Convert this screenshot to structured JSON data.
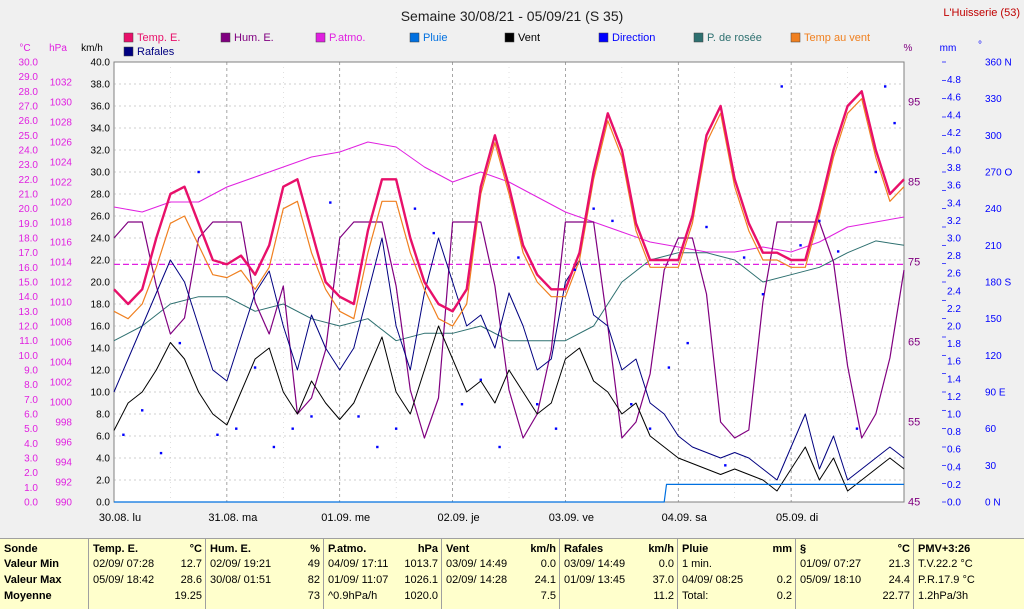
{
  "header": {
    "title": "Semaine 30/08/21 - 05/09/21 (S 35)",
    "station": "L'Huisserie (53)"
  },
  "legend": [
    {
      "name": "Temp. E.",
      "color": "#e8106a"
    },
    {
      "name": "Hum. E.",
      "color": "#800080"
    },
    {
      "name": "P.atmo.",
      "color": "#e020e0"
    },
    {
      "name": "Pluie",
      "color": "#0070e0"
    },
    {
      "name": "Vent",
      "color": "#000000"
    },
    {
      "name": "Direction",
      "color": "#0000ff"
    },
    {
      "name": "P. de rosée",
      "color": "#2e7070"
    },
    {
      "name": "Temp au vent",
      "color": "#f08020"
    },
    {
      "name": "Rafales",
      "color": "#000080"
    }
  ],
  "axes": {
    "temp_unit": "°C",
    "press_unit": "hPa",
    "wind_unit": "km/h",
    "hum_unit": "%",
    "rain_unit": "mm",
    "dir_unit": "°",
    "temp_ticks": [
      "30.0",
      "29.0",
      "28.0",
      "27.0",
      "26.0",
      "25.0",
      "24.0",
      "23.0",
      "22.0",
      "21.0",
      "20.0",
      "19.0",
      "18.0",
      "17.0",
      "16.0",
      "15.0",
      "14.0",
      "13.0",
      "12.0",
      "11.0",
      "10.0",
      "9.0",
      "8.0",
      "7.0",
      "6.0",
      "5.0",
      "4.0",
      "3.0",
      "2.0",
      "1.0",
      "0.0"
    ],
    "press_ticks": [
      "1032",
      "1030",
      "1028",
      "1026",
      "1024",
      "1022",
      "1020",
      "1018",
      "1016",
      "1014",
      "1012",
      "1010",
      "1008",
      "1006",
      "1004",
      "1002",
      "1000",
      "998",
      "996",
      "994",
      "992",
      "990"
    ],
    "wind_ticks": [
      "40.0",
      "38.0",
      "36.0",
      "34.0",
      "32.0",
      "30.0",
      "28.0",
      "26.0",
      "24.0",
      "22.0",
      "20.0",
      "18.0",
      "16.0",
      "14.0",
      "12.0",
      "10.0",
      "8.0",
      "6.0",
      "4.0",
      "2.0",
      "0.0"
    ],
    "hum_ticks": [
      "95",
      "85",
      "75",
      "65",
      "55",
      "45"
    ],
    "rain_ticks": [
      "4.8",
      "4.6",
      "4.4",
      "4.2",
      "4.0",
      "3.8",
      "3.6",
      "3.4",
      "3.2",
      "3.0",
      "2.8",
      "2.6",
      "2.4",
      "2.2",
      "2.0",
      "1.8",
      "1.6",
      "1.4",
      "1.2",
      "1.0",
      "0.8",
      "0.6",
      "0.4",
      "0.2",
      "0.0"
    ],
    "dir_ticks": [
      "360 N",
      "330",
      "300",
      "270 O",
      "240",
      "210",
      "180 S",
      "150",
      "120",
      "90 E",
      "60",
      "30",
      "0   N"
    ],
    "day_labels": [
      "30.08.  lu",
      "31.08.  ma",
      "01.09.  me",
      "02.09.  je",
      "03.09.  ve",
      "04.09.  sa",
      "05.09.  di"
    ]
  },
  "chart_data": {
    "type": "line",
    "x_unit": "hours since 30.08 00:00",
    "x_range": [
      0,
      168
    ],
    "temp_range": [
      0,
      30
    ],
    "wind_range": [
      0,
      40
    ],
    "pressure_range": [
      990,
      1034
    ],
    "humidity_range": [
      45,
      100
    ],
    "rain_range": [
      0,
      5
    ],
    "direction_range": [
      0,
      360
    ],
    "threshold_temp": 16.2,
    "series": [
      {
        "name": "Temp. E.",
        "axis": "temp",
        "x": [
          0,
          3,
          6,
          9,
          12,
          15,
          18,
          21,
          24,
          27,
          30,
          33,
          36,
          39,
          42,
          45,
          48,
          51,
          54,
          57,
          60,
          63,
          66,
          69,
          72,
          75,
          78,
          81,
          84,
          87,
          90,
          93,
          96,
          99,
          102,
          105,
          108,
          111,
          114,
          117,
          120,
          123,
          126,
          129,
          132,
          135,
          138,
          141,
          144,
          147,
          150,
          153,
          156,
          159,
          162,
          165,
          168
        ],
        "values": [
          14.5,
          13.5,
          14.5,
          18,
          21,
          21.5,
          19,
          16.5,
          16.2,
          16.8,
          15.5,
          17.5,
          21.5,
          22,
          18.5,
          15,
          14,
          13.5,
          18.5,
          22,
          22,
          18,
          15,
          13.5,
          13,
          14.5,
          21.5,
          25,
          21.5,
          17.5,
          15.5,
          14.5,
          14.5,
          17,
          22.5,
          26.5,
          24,
          19,
          16.5,
          16.5,
          16.5,
          19.5,
          25,
          27,
          22,
          19,
          17,
          17,
          16.5,
          16.5,
          20,
          24,
          27,
          28,
          24,
          21,
          22
        ]
      },
      {
        "name": "Temp au vent",
        "axis": "temp",
        "x": [
          0,
          3,
          6,
          9,
          12,
          15,
          18,
          21,
          24,
          27,
          30,
          33,
          36,
          39,
          42,
          45,
          48,
          51,
          54,
          57,
          60,
          63,
          66,
          69,
          72,
          75,
          78,
          81,
          84,
          87,
          90,
          93,
          96,
          99,
          102,
          105,
          108,
          111,
          114,
          117,
          120,
          123,
          126,
          129,
          132,
          135,
          138,
          141,
          144,
          147,
          150,
          153,
          156,
          159,
          162,
          165,
          168
        ],
        "values": [
          13,
          12.5,
          13.5,
          16,
          19,
          19.5,
          17.5,
          15.5,
          15.3,
          15.8,
          14.5,
          16,
          20,
          20.5,
          17,
          14.5,
          13,
          12.5,
          17,
          20.5,
          20.5,
          17,
          14.5,
          12.5,
          12,
          13.5,
          21,
          24.5,
          21,
          17,
          15,
          14,
          14,
          16.5,
          22,
          26,
          23.5,
          18.5,
          16,
          16,
          16,
          19,
          24.5,
          26.5,
          21.5,
          18.5,
          16.5,
          16.5,
          16,
          16,
          19.5,
          23.5,
          26.5,
          27.5,
          23.5,
          20.5,
          21.5
        ]
      },
      {
        "name": "P. de rosée",
        "axis": "temp",
        "x": [
          0,
          6,
          12,
          18,
          24,
          30,
          36,
          42,
          48,
          54,
          60,
          66,
          72,
          78,
          84,
          90,
          96,
          102,
          108,
          114,
          120,
          126,
          132,
          138,
          144,
          150,
          156,
          162,
          168
        ],
        "values": [
          11,
          12,
          13.5,
          14,
          14,
          13,
          13.5,
          12.5,
          12,
          12.5,
          11,
          11.5,
          11.5,
          12,
          11,
          11,
          11,
          12,
          15,
          16.5,
          17,
          17,
          16.5,
          15,
          15.5,
          16,
          17,
          17.8,
          17.5
        ]
      },
      {
        "name": "Hum. E.",
        "axis": "humidity",
        "x": [
          0,
          3,
          6,
          9,
          12,
          15,
          18,
          21,
          24,
          27,
          30,
          33,
          36,
          39,
          42,
          45,
          48,
          51,
          54,
          57,
          60,
          63,
          66,
          69,
          72,
          75,
          78,
          81,
          84,
          87,
          90,
          93,
          96,
          99,
          102,
          105,
          108,
          111,
          114,
          117,
          120,
          123,
          126,
          129,
          132,
          135,
          138,
          141,
          144,
          147,
          150,
          153,
          156,
          159,
          162,
          165,
          168
        ],
        "values": [
          78,
          80,
          80,
          72,
          66,
          68,
          78,
          80,
          80,
          80,
          70,
          66,
          72,
          56,
          58,
          64,
          78,
          80,
          80,
          80,
          72,
          59,
          53,
          58,
          80,
          80,
          80,
          72,
          59,
          53,
          56,
          64,
          80,
          80,
          80,
          67,
          53,
          55,
          61,
          74,
          78,
          78,
          71,
          55,
          53,
          54,
          70,
          80,
          80,
          80,
          80,
          75,
          62,
          53,
          56,
          63,
          74
        ]
      },
      {
        "name": "P.atmo.",
        "axis": "pressure",
        "x": [
          0,
          6,
          12,
          18,
          24,
          30,
          36,
          42,
          48,
          54,
          60,
          66,
          72,
          78,
          84,
          90,
          96,
          102,
          108,
          114,
          120,
          126,
          132,
          138,
          144,
          150,
          156,
          162,
          168
        ],
        "values": [
          1019.5,
          1019,
          1020,
          1020,
          1021.5,
          1022.5,
          1023.5,
          1024.5,
          1025,
          1026,
          1025.5,
          1023.5,
          1022,
          1023,
          1022,
          1020.5,
          1019,
          1018,
          1017,
          1016,
          1015.5,
          1015,
          1015,
          1015.5,
          1015,
          1016,
          1017.5,
          1018,
          1018.5
        ]
      },
      {
        "name": "Vent",
        "axis": "wind",
        "x": [
          0,
          3,
          6,
          9,
          12,
          15,
          18,
          21,
          24,
          27,
          30,
          33,
          36,
          39,
          42,
          45,
          48,
          51,
          54,
          57,
          60,
          63,
          66,
          69,
          72,
          75,
          78,
          81,
          84,
          87,
          90,
          93,
          96,
          99,
          102,
          105,
          108,
          111,
          114,
          117,
          120,
          123,
          126,
          129,
          132,
          135,
          138,
          141,
          144,
          147,
          150,
          153,
          156,
          159,
          162,
          165,
          168
        ],
        "values": [
          6.5,
          9,
          10,
          12,
          14.5,
          13,
          10,
          8,
          7,
          10,
          13,
          14,
          10,
          8,
          11,
          9,
          7.5,
          9,
          12,
          15,
          10,
          8,
          12,
          16,
          13,
          10,
          11,
          9,
          12,
          10,
          8,
          9,
          13,
          14,
          11,
          10,
          8,
          9,
          6,
          5,
          4,
          3.5,
          3,
          2.5,
          3,
          2.5,
          2,
          1,
          3,
          5,
          2,
          4,
          1,
          2,
          3,
          4,
          3
        ]
      },
      {
        "name": "Rafales",
        "axis": "wind",
        "x": [
          0,
          3,
          6,
          9,
          12,
          15,
          18,
          21,
          24,
          27,
          30,
          33,
          36,
          39,
          42,
          45,
          48,
          51,
          54,
          57,
          60,
          63,
          66,
          69,
          72,
          75,
          78,
          81,
          84,
          87,
          90,
          93,
          96,
          99,
          102,
          105,
          108,
          111,
          114,
          117,
          120,
          123,
          126,
          129,
          132,
          135,
          138,
          141,
          144,
          147,
          150,
          153,
          156,
          159,
          162,
          165,
          168
        ],
        "values": [
          10,
          13,
          16,
          19,
          22,
          20,
          16,
          12,
          11,
          15,
          19,
          21,
          16,
          12,
          17,
          14,
          12,
          14,
          19,
          24,
          16,
          12,
          19,
          24,
          20,
          16,
          17,
          14,
          19,
          16,
          12,
          13,
          20,
          22,
          17,
          16,
          12,
          13,
          9,
          8,
          6,
          5,
          4.5,
          4,
          4.5,
          4,
          3,
          2,
          5,
          8,
          3,
          6,
          2,
          3,
          4,
          5,
          4
        ]
      },
      {
        "name": "Pluie",
        "axis": "rain",
        "x": [
          0,
          108,
          114,
          117,
          117.5,
          121,
          168
        ],
        "values": [
          0,
          0,
          0,
          0,
          0.2,
          0.2,
          0.2
        ]
      }
    ],
    "direction_points": [
      [
        2,
        55
      ],
      [
        6,
        75
      ],
      [
        10,
        40
      ],
      [
        14,
        130
      ],
      [
        18,
        270
      ],
      [
        22,
        55
      ],
      [
        26,
        60
      ],
      [
        30,
        110
      ],
      [
        34,
        45
      ],
      [
        38,
        60
      ],
      [
        42,
        70
      ],
      [
        46,
        245
      ],
      [
        52,
        70
      ],
      [
        56,
        45
      ],
      [
        60,
        60
      ],
      [
        64,
        240
      ],
      [
        68,
        220
      ],
      [
        74,
        80
      ],
      [
        78,
        100
      ],
      [
        82,
        45
      ],
      [
        86,
        200
      ],
      [
        90,
        80
      ],
      [
        94,
        60
      ],
      [
        98,
        190
      ],
      [
        102,
        240
      ],
      [
        106,
        230
      ],
      [
        110,
        80
      ],
      [
        114,
        60
      ],
      [
        118,
        110
      ],
      [
        122,
        130
      ],
      [
        126,
        225
      ],
      [
        130,
        30
      ],
      [
        134,
        200
      ],
      [
        138,
        170
      ],
      [
        142,
        340
      ],
      [
        146,
        210
      ],
      [
        150,
        230
      ],
      [
        154,
        205
      ],
      [
        158,
        60
      ],
      [
        162,
        270
      ],
      [
        164,
        340
      ],
      [
        166,
        310
      ]
    ],
    "xlabel": "",
    "ylabel": ""
  },
  "stats": {
    "labels": {
      "title": "Sonde",
      "min": "Valeur Min",
      "max": "Valeur Max",
      "avg": "Moyenne"
    },
    "columns": [
      {
        "header": "Temp. E.",
        "unit": "°C",
        "min_time": "02/09/  07:28",
        "min_value": "12.7",
        "max_time": "05/09/  18:42",
        "max_value": "28.6",
        "avg_text": "",
        "avg_value": "19.25"
      },
      {
        "header": "Hum. E.",
        "unit": "%",
        "min_time": "02/09/  19:21",
        "min_value": "49",
        "max_time": "30/08/  01:51",
        "max_value": "82",
        "avg_text": "",
        "avg_value": "73"
      },
      {
        "header": "P.atmo.",
        "unit": "hPa",
        "min_time": "04/09/  17:11",
        "min_value": "1013.7",
        "max_time": "01/09/  11:07",
        "max_value": "1026.1",
        "avg_text": "^0.9hPa/h",
        "avg_value": "1020.0"
      },
      {
        "header": "Vent",
        "unit": "km/h",
        "min_time": "03/09/  14:49",
        "min_value": "0.0",
        "max_time": "02/09/  14:28",
        "max_value": "24.1",
        "avg_text": "",
        "avg_value": "7.5"
      },
      {
        "header": "Rafales",
        "unit": "km/h",
        "min_time": "03/09/  14:49",
        "min_value": "0.0",
        "max_time": "01/09/  13:45",
        "max_value": "37.0",
        "avg_text": "",
        "avg_value": "11.2"
      },
      {
        "header": "Pluie",
        "unit": "mm",
        "min_time": "1 min.",
        "min_value": "",
        "max_time": "04/09/  08:25",
        "max_value": "0.2",
        "avg_text": "Total:",
        "avg_value": "0.2"
      },
      {
        "header": "§",
        "unit": "°C",
        "min_time": "01/09/  07:27",
        "min_value": "21.3",
        "max_time": "05/09/  18:10",
        "max_value": "24.4",
        "avg_text": "",
        "avg_value": "22.77"
      }
    ],
    "pmv": {
      "header": "PMV+3:26",
      "line1": "T.V.22.2 °C",
      "line2": "P.R.17.9 °C",
      "line3": "1.2hPa/3h"
    }
  }
}
